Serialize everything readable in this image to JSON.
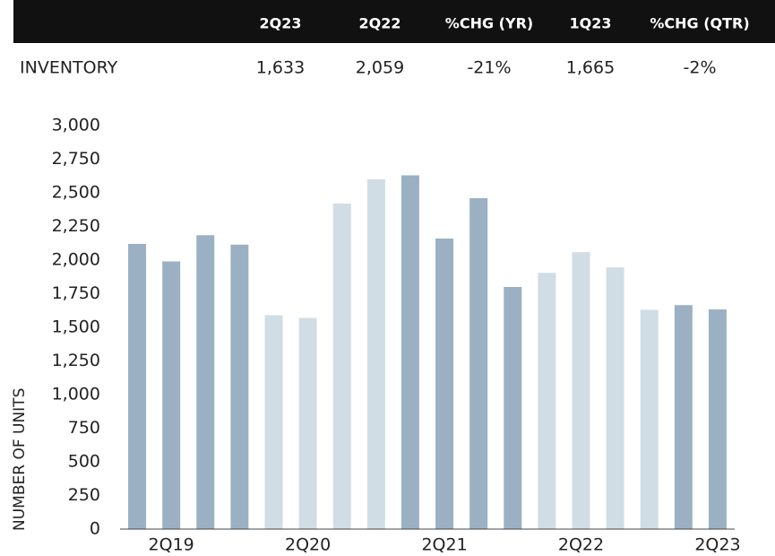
{
  "table": {
    "header": [
      "2Q23",
      "2Q22",
      "%CHG (YR)",
      "1Q23",
      "%CHG (QTR)"
    ],
    "rows": [
      [
        "INVENTORY",
        "1,633",
        "2,059",
        "-21%",
        "1,665",
        "-2%"
      ]
    ]
  },
  "chart_data": {
    "type": "bar",
    "y_label": "NUMBER OF UNITS",
    "categories": [
      null,
      "2Q19",
      null,
      null,
      null,
      "2Q20",
      null,
      null,
      null,
      "2Q21",
      null,
      null,
      null,
      "2Q22",
      null,
      null,
      null,
      "2Q23"
    ],
    "values": [
      2120,
      1990,
      2185,
      2115,
      1590,
      1570,
      2420,
      2600,
      2630,
      2160,
      2460,
      1800,
      1905,
      2059,
      1945,
      1630,
      1665,
      1633
    ],
    "colors": [
      "#9bb1c3",
      "#9bb1c3",
      "#9bb1c3",
      "#9bb1c3",
      "#d1dde5",
      "#d1dde5",
      "#d1dde5",
      "#d1dde5",
      "#9bb1c3",
      "#9bb1c3",
      "#9bb1c3",
      "#9bb1c3",
      "#d1dde5",
      "#d1dde5",
      "#d1dde5",
      "#d1dde5",
      "#9bb1c3",
      "#9bb1c3"
    ],
    "ylim": [
      0,
      3000
    ],
    "yticks": [
      0,
      250,
      500,
      750,
      {
        "value": 1000,
        "label": "1,000"
      },
      {
        "value": 1250,
        "label": "1,250"
      },
      {
        "value": 1500,
        "label": "1,500"
      },
      {
        "value": 1750,
        "label": "1,750"
      },
      {
        "value": 2000,
        "label": "2,000"
      },
      {
        "value": 2250,
        "label": "2,250"
      },
      {
        "value": 2500,
        "label": "2,500"
      },
      {
        "value": 2750,
        "label": "2,750"
      },
      {
        "value": 3000,
        "label": "3,000"
      }
    ],
    "grid": false
  }
}
